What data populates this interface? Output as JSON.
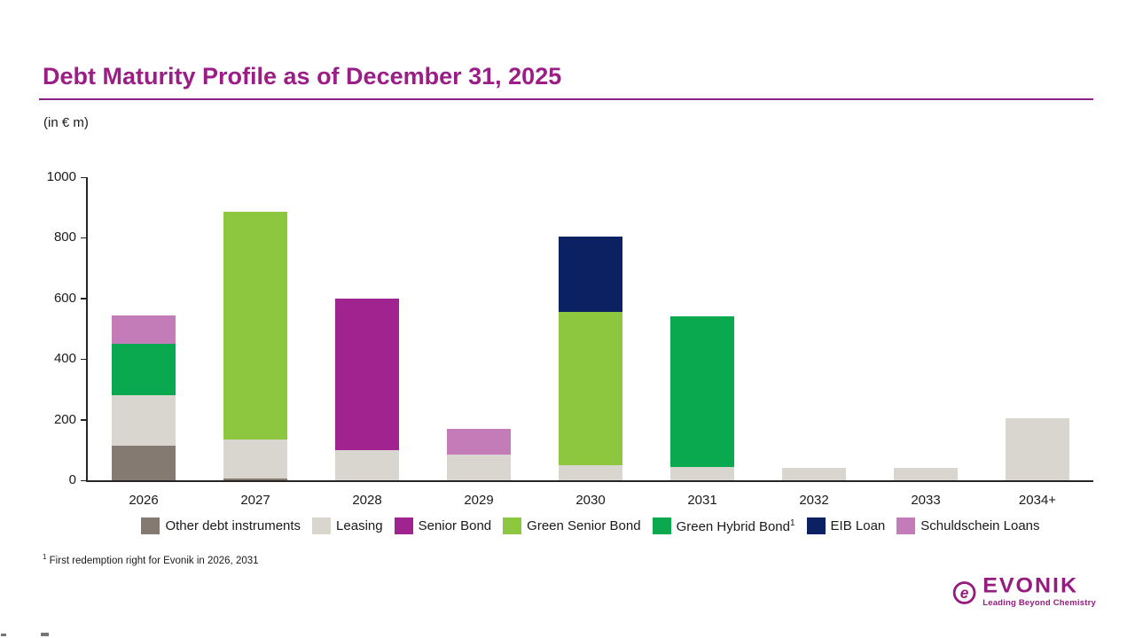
{
  "page": {
    "title": "Debt Maturity Profile as of December 31, 2025",
    "unit_label": "(in € m)"
  },
  "brand": {
    "accent_color": "#9B1E87",
    "rule_color": "#8B2086"
  },
  "chart_data": {
    "type": "bar",
    "stacked": true,
    "title": "Debt Maturity Profile as of December 31, 2025",
    "unit": "€ m",
    "xlabel": "",
    "ylabel": "(in € m)",
    "ylim": [
      0,
      1000
    ],
    "yticks": [
      0,
      200,
      400,
      600,
      800,
      1000
    ],
    "grid": false,
    "legend_position": "bottom",
    "categories": [
      "2026",
      "2027",
      "2028",
      "2029",
      "2030",
      "2031",
      "2032",
      "2033",
      "2034+"
    ],
    "series": [
      {
        "name": "Other debt instruments",
        "color": "#857A71",
        "values": [
          115,
          5,
          0,
          0,
          0,
          0,
          0,
          0,
          0
        ]
      },
      {
        "name": "Leasing",
        "color": "#D9D6D0",
        "values": [
          165,
          130,
          100,
          85,
          50,
          45,
          40,
          40,
          205
        ]
      },
      {
        "name": "Senior Bond",
        "color": "#A0238F",
        "values": [
          0,
          0,
          500,
          0,
          0,
          0,
          0,
          0,
          0
        ]
      },
      {
        "name": "Green Senior Bond",
        "color": "#8DC63F",
        "values": [
          0,
          750,
          0,
          0,
          505,
          0,
          0,
          0,
          0
        ]
      },
      {
        "name": "Green Hybrid Bond",
        "sup": "1",
        "color": "#0AA84F",
        "values": [
          170,
          0,
          0,
          0,
          0,
          495,
          0,
          0,
          0
        ]
      },
      {
        "name": "EIB Loan",
        "color": "#0B2161",
        "values": [
          0,
          0,
          0,
          0,
          250,
          0,
          0,
          0,
          0
        ]
      },
      {
        "name": "Schuldschein Loans",
        "color": "#C47CB9",
        "values": [
          95,
          0,
          0,
          85,
          0,
          0,
          0,
          0,
          0
        ]
      }
    ],
    "bar_totals": [
      545,
      885,
      600,
      170,
      805,
      540,
      40,
      40,
      205
    ]
  },
  "footnote": {
    "marker": "1",
    "text": "First redemption right for Evonik in 2026, 2031"
  },
  "logo": {
    "wordmark": "EVONIK",
    "tagline": "Leading Beyond Chemistry",
    "color": "#951B81"
  }
}
